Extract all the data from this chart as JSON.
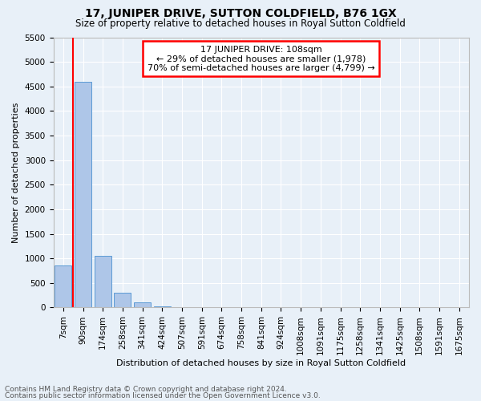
{
  "title": "17, JUNIPER DRIVE, SUTTON COLDFIELD, B76 1GX",
  "subtitle": "Size of property relative to detached houses in Royal Sutton Coldfield",
  "xlabel": "Distribution of detached houses by size in Royal Sutton Coldfield",
  "ylabel": "Number of detached properties",
  "footer1": "Contains HM Land Registry data © Crown copyright and database right 2024.",
  "footer2": "Contains public sector information licensed under the Open Government Licence v3.0.",
  "property_label": "17 JUNIPER DRIVE: 108sqm",
  "annotation_line1": "← 29% of detached houses are smaller (1,978)",
  "annotation_line2": "70% of semi-detached houses are larger (4,799) →",
  "bar_categories": [
    "7sqm",
    "90sqm",
    "174sqm",
    "258sqm",
    "341sqm",
    "424sqm",
    "507sqm",
    "591sqm",
    "674sqm",
    "758sqm",
    "841sqm",
    "924sqm",
    "1008sqm",
    "1091sqm",
    "1175sqm",
    "1258sqm",
    "1341sqm",
    "1425sqm",
    "1508sqm",
    "1591sqm",
    "1675sqm"
  ],
  "bar_values": [
    850,
    4600,
    1050,
    300,
    100,
    30,
    15,
    8,
    5,
    4,
    3,
    3,
    2,
    2,
    2,
    1,
    1,
    1,
    1,
    1,
    1
  ],
  "bar_color": "#aec6e8",
  "bar_edge_color": "#5b9bd5",
  "vline_x": 0.5,
  "ylim": [
    0,
    5500
  ],
  "annotation_box_color": "white",
  "annotation_box_edge": "red",
  "vline_color": "red",
  "background_color": "#e8f0f8",
  "grid_color": "white",
  "title_fontsize": 10,
  "subtitle_fontsize": 8.5,
  "ylabel_fontsize": 8,
  "xlabel_fontsize": 8,
  "tick_fontsize": 7.5,
  "footer_fontsize": 6.5
}
